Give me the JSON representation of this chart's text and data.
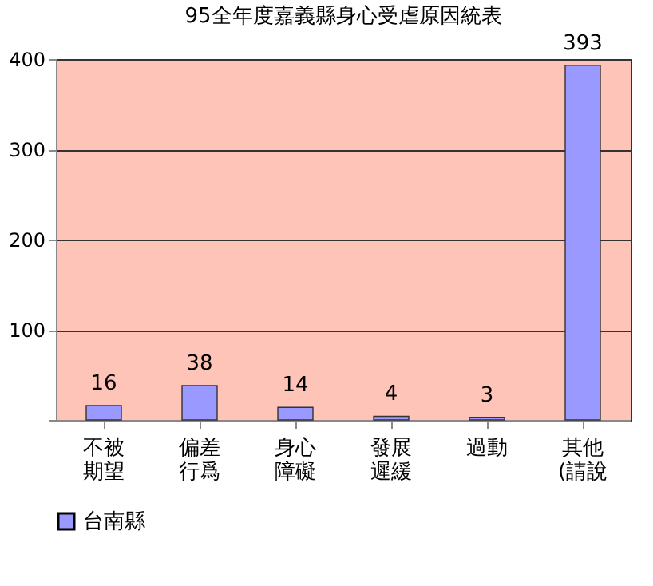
{
  "chart_data": {
    "type": "bar",
    "title": "95全年度嘉義縣身心受虐原因統表",
    "categories": [
      "不被期望",
      "偏差行爲",
      "身心障礙",
      "發展遲緩",
      "過動",
      "其他(請說"
    ],
    "series": [
      {
        "name": "台南縣",
        "color": "#9999ff",
        "values": [
          16,
          38,
          14,
          4,
          3,
          393
        ]
      }
    ],
    "ylim": [
      0,
      400
    ],
    "yticks": [
      {
        "value": 0,
        "label": null
      },
      100,
      200,
      300,
      400
    ],
    "grid": "y",
    "legend": "bottom",
    "data_labels": true
  }
}
